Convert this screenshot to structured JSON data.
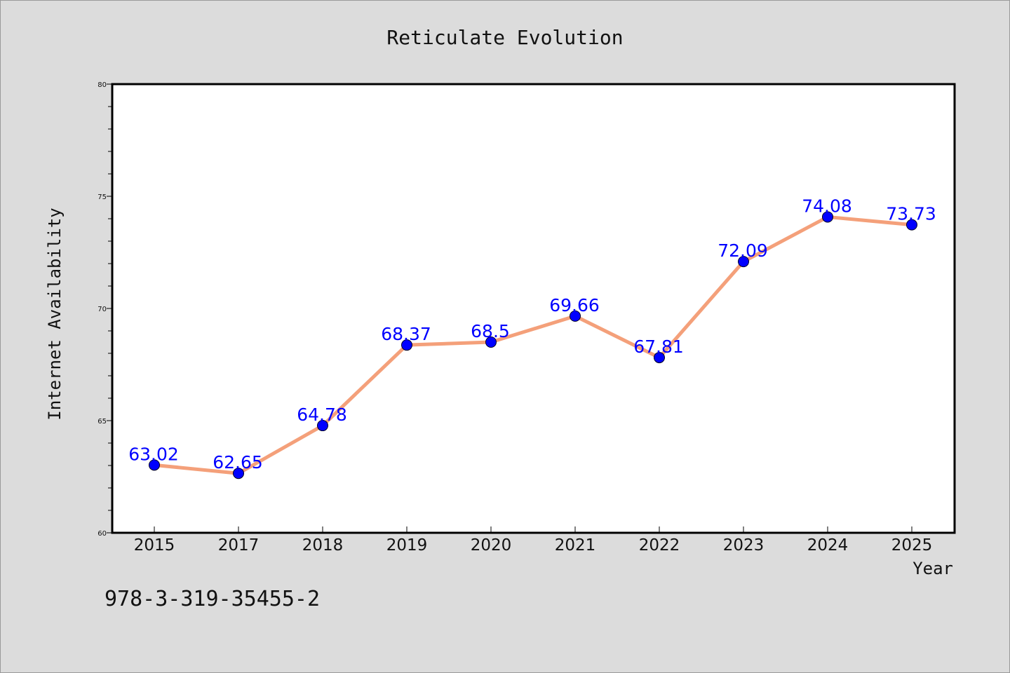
{
  "chart_data": {
    "type": "line",
    "title": "Reticulate Evolution",
    "xlabel": "Year",
    "ylabel": "Internet Availability",
    "categories": [
      "2015",
      "2017",
      "2018",
      "2019",
      "2020",
      "2021",
      "2022",
      "2023",
      "2024",
      "2025"
    ],
    "series": [
      {
        "values": [
          63.02,
          62.65,
          64.78,
          68.37,
          68.5,
          69.66,
          67.81,
          72.09,
          74.08,
          73.73
        ],
        "data_labels": [
          "63.02",
          "62.65",
          "64.78",
          "68.37",
          "68.5",
          "69.66",
          "67.81",
          "72.09",
          "74.08",
          "73.73"
        ],
        "line_color": "#f4a07a",
        "marker_color": "#0000ff"
      }
    ],
    "ylim": [
      60,
      80
    ],
    "yticks": [
      "60",
      "65",
      "70",
      "75",
      "80"
    ],
    "grid": false,
    "legend": "none"
  },
  "footer": {
    "isbn": "978-3-319-35455-2"
  },
  "colors": {
    "background": "#dcdcdc",
    "plot_background": "#ffffff",
    "data_label": "#0000ff"
  }
}
